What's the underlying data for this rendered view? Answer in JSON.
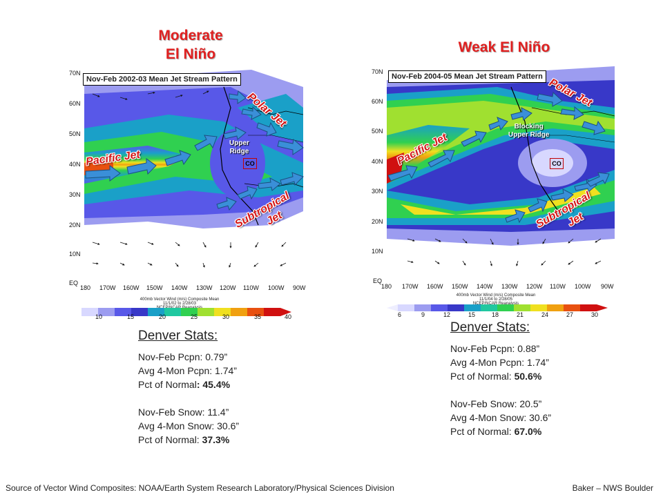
{
  "left": {
    "title_line1": "Moderate",
    "title_line2": "El Niño",
    "map_title": "Nov-Feb 2002-03 Mean Jet Stream Pattern",
    "lat_labels": [
      "70N",
      "60N",
      "50N",
      "40N",
      "30N",
      "20N",
      "10N",
      "EQ"
    ],
    "lon_labels": [
      "180",
      "170W",
      "160W",
      "150W",
      "140W",
      "130W",
      "120W",
      "110W",
      "100W",
      "90W"
    ],
    "jet_labels": {
      "pacific": "Pacific Jet",
      "polar": "Polar Jet",
      "subtropical1": "Subtropical",
      "subtropical2": "Jet"
    },
    "ridge_label1": "Upper",
    "ridge_label2": "Ridge",
    "co_label": "CO",
    "colorbar_caption1": "400mb Vector Wind (m/s) Composite Mean",
    "colorbar_caption2": "11/1/02 to 2/28/03",
    "colorbar_caption3": "NCEP/NCAR Reanalysis",
    "colorbar_ticks": [
      "10",
      "15",
      "20",
      "25",
      "30",
      "35",
      "40"
    ],
    "stats": {
      "heading": "Denver Stats:",
      "line1": "Nov-Feb Pcpn: 0.79”",
      "line2": "Avg 4-Mon Pcpn: 1.74”",
      "line3_label": "Pct of Normal",
      "line3_value": ":  45.4%",
      "line4": "Nov-Feb Snow: 11.4”",
      "line5": "Avg 4-Mon Snow: 30.6”",
      "line6_label": "Pct of Normal: ",
      "line6_value": "37.3%"
    }
  },
  "right": {
    "title": "Weak El Niño",
    "map_title": "Nov-Feb 2004-05 Mean Jet Stream Pattern",
    "lat_labels": [
      "70N",
      "60N",
      "50N",
      "40N",
      "30N",
      "20N",
      "10N",
      "EQ"
    ],
    "lon_labels": [
      "180",
      "170W",
      "160W",
      "150W",
      "140W",
      "130W",
      "120W",
      "110W",
      "100W",
      "90W"
    ],
    "jet_labels": {
      "pacific": "Pacific Jet",
      "polar": "Polar Jet",
      "subtropical1": "Subtropical",
      "subtropical2": "Jet"
    },
    "ridge_label1": "Blocking",
    "ridge_label2": "Upper Ridge",
    "co_label": "CO",
    "colorbar_caption1": "400mb Vector Wind (m/s) Composite Mean",
    "colorbar_caption2": "11/1/04 to 2/28/05",
    "colorbar_caption3": "NCEP/NCAR Reanalysis",
    "colorbar_ticks": [
      "6",
      "9",
      "12",
      "15",
      "18",
      "21",
      "24",
      "27",
      "30"
    ],
    "stats": {
      "heading": "Denver Stats:",
      "line1": "Nov-Feb Pcpn: 0.88”",
      "line2": "Avg 4-Mon Pcpn: 1.74”",
      "line3_label": "Pct of Normal: ",
      "line3_value": "50.6%",
      "line4": "Nov-Feb Snow: 20.5”",
      "line5": "Avg 4-Mon Snow: 30.6”",
      "line6_label": "Pct of Normal: ",
      "line6_value": "67.0%"
    }
  },
  "footer": {
    "source": "Source of Vector Wind Composites: NOAA/Earth System Research Laboratory/Physical Sciences Division",
    "credit": "Baker – NWS Boulder"
  },
  "colors": {
    "title_red": "#e02020",
    "jet_arrow": "#3a8fd8",
    "ocean_white": "#ffffff",
    "scale": [
      "#d8d8ff",
      "#9c9cf0",
      "#5858e8",
      "#3838c8",
      "#1aa0c8",
      "#20c8a0",
      "#30d050",
      "#a0e030",
      "#f0e020",
      "#f0a010",
      "#e85010",
      "#d01010"
    ]
  }
}
